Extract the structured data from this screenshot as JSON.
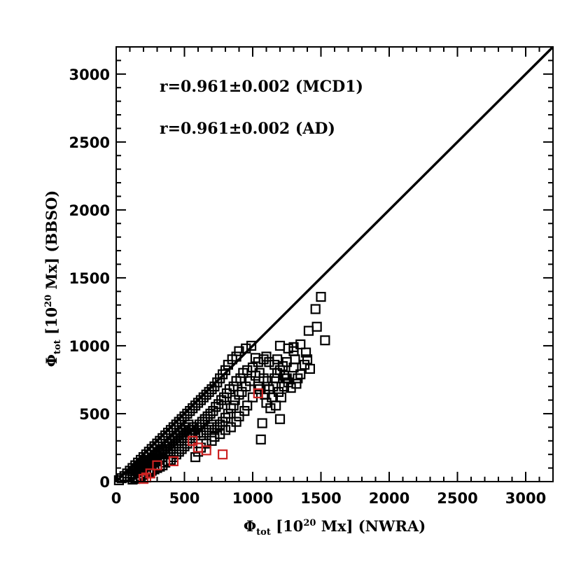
{
  "chart_data": {
    "type": "scatter",
    "title": "",
    "xlabel": {
      "phi": "Φ",
      "sub": "tot",
      "base": " [10",
      "sup": "20",
      "rest": " Mx] (NWRA)"
    },
    "ylabel": {
      "phi": "Φ",
      "sub": "tot",
      "base": " [10",
      "sup": "20",
      "rest": " Mx] (BBSO)"
    },
    "xlim": [
      0,
      3200
    ],
    "ylim": [
      0,
      3200
    ],
    "x_ticks": [
      "0",
      "500",
      "1000",
      "1500",
      "2000",
      "2500",
      "3000"
    ],
    "y_ticks": [
      "0",
      "500",
      "1000",
      "1500",
      "2000",
      "2500",
      "3000"
    ],
    "x_tick_values": [
      0,
      500,
      1000,
      1500,
      2000,
      2500,
      3000
    ],
    "y_tick_values": [
      0,
      500,
      1000,
      1500,
      2000,
      2500,
      3000
    ],
    "annotations": [
      "r=0.961±0.002 (MCD1)",
      "r=0.961±0.002 (AD)"
    ],
    "reference_line": {
      "type": "y=x",
      "color": "#000000"
    },
    "grid": false,
    "marker": "open-square",
    "series": [
      {
        "color": "#000000",
        "points": [
          [
            1500,
            1360
          ],
          [
            1460,
            1270
          ],
          [
            1470,
            1140
          ],
          [
            1410,
            1110
          ],
          [
            1530,
            1040
          ],
          [
            1350,
            1010
          ],
          [
            1300,
            990
          ],
          [
            1300,
            960
          ],
          [
            1200,
            1000
          ],
          [
            1260,
            980
          ],
          [
            1420,
            830
          ],
          [
            1350,
            790
          ],
          [
            1330,
            760
          ],
          [
            1320,
            720
          ],
          [
            1280,
            690
          ],
          [
            1260,
            730
          ],
          [
            1240,
            760
          ],
          [
            1230,
            780
          ],
          [
            1300,
            840
          ],
          [
            1380,
            860
          ],
          [
            1400,
            900
          ],
          [
            1390,
            950
          ],
          [
            1310,
            900
          ],
          [
            1250,
            880
          ],
          [
            1220,
            850
          ],
          [
            1200,
            820
          ],
          [
            1180,
            800
          ],
          [
            1160,
            860
          ],
          [
            1120,
            880
          ],
          [
            1100,
            920
          ],
          [
            1080,
            900
          ],
          [
            1040,
            880
          ],
          [
            1020,
            910
          ],
          [
            990,
            1000
          ],
          [
            950,
            980
          ],
          [
            900,
            960
          ],
          [
            880,
            920
          ],
          [
            850,
            900
          ],
          [
            820,
            860
          ],
          [
            800,
            820
          ],
          [
            780,
            790
          ],
          [
            760,
            760
          ],
          [
            740,
            730
          ],
          [
            720,
            700
          ],
          [
            700,
            680
          ],
          [
            680,
            660
          ],
          [
            660,
            640
          ],
          [
            640,
            620
          ],
          [
            620,
            600
          ],
          [
            600,
            580
          ],
          [
            580,
            560
          ],
          [
            560,
            540
          ],
          [
            540,
            520
          ],
          [
            520,
            500
          ],
          [
            500,
            480
          ],
          [
            480,
            460
          ],
          [
            460,
            440
          ],
          [
            440,
            420
          ],
          [
            420,
            400
          ],
          [
            400,
            380
          ],
          [
            380,
            360
          ],
          [
            360,
            340
          ],
          [
            340,
            320
          ],
          [
            320,
            300
          ],
          [
            300,
            280
          ],
          [
            280,
            260
          ],
          [
            260,
            240
          ],
          [
            240,
            220
          ],
          [
            220,
            200
          ],
          [
            200,
            180
          ],
          [
            180,
            160
          ],
          [
            160,
            140
          ],
          [
            140,
            120
          ],
          [
            120,
            100
          ],
          [
            100,
            80
          ],
          [
            80,
            60
          ],
          [
            60,
            40
          ],
          [
            40,
            25
          ],
          [
            20,
            10
          ],
          [
            1210,
            620
          ],
          [
            1200,
            460
          ],
          [
            1170,
            560
          ],
          [
            1130,
            540
          ],
          [
            1100,
            580
          ],
          [
            1070,
            430
          ],
          [
            1060,
            310
          ],
          [
            1050,
            680
          ],
          [
            1000,
            620
          ],
          [
            960,
            560
          ],
          [
            940,
            520
          ],
          [
            900,
            480
          ],
          [
            880,
            440
          ],
          [
            840,
            400
          ],
          [
            800,
            380
          ],
          [
            760,
            350
          ],
          [
            720,
            330
          ],
          [
            700,
            300
          ],
          [
            660,
            280
          ],
          [
            620,
            250
          ],
          [
            600,
            220
          ],
          [
            580,
            180
          ],
          [
            560,
            320
          ],
          [
            540,
            300
          ],
          [
            520,
            280
          ],
          [
            500,
            260
          ],
          [
            480,
            240
          ],
          [
            460,
            220
          ],
          [
            440,
            200
          ],
          [
            420,
            180
          ],
          [
            400,
            160
          ],
          [
            380,
            150
          ],
          [
            360,
            140
          ],
          [
            340,
            120
          ],
          [
            320,
            110
          ],
          [
            300,
            100
          ],
          [
            280,
            90
          ],
          [
            260,
            80
          ],
          [
            240,
            70
          ],
          [
            220,
            60
          ],
          [
            200,
            50
          ],
          [
            180,
            40
          ],
          [
            160,
            30
          ],
          [
            140,
            20
          ],
          [
            120,
            15
          ],
          [
            1150,
            700
          ],
          [
            1110,
            740
          ],
          [
            1080,
            760
          ],
          [
            1050,
            800
          ],
          [
            1020,
            780
          ],
          [
            980,
            740
          ],
          [
            950,
            700
          ],
          [
            920,
            660
          ],
          [
            900,
            640
          ],
          [
            870,
            600
          ],
          [
            860,
            560
          ],
          [
            840,
            540
          ],
          [
            820,
            500
          ],
          [
            800,
            470
          ],
          [
            780,
            440
          ],
          [
            760,
            420
          ],
          [
            740,
            400
          ],
          [
            720,
            380
          ],
          [
            700,
            420
          ],
          [
            680,
            400
          ],
          [
            660,
            380
          ],
          [
            640,
            360
          ],
          [
            620,
            340
          ],
          [
            600,
            360
          ],
          [
            580,
            340
          ],
          [
            560,
            400
          ],
          [
            540,
            380
          ],
          [
            520,
            360
          ],
          [
            500,
            340
          ],
          [
            480,
            320
          ],
          [
            460,
            300
          ],
          [
            440,
            280
          ],
          [
            420,
            260
          ],
          [
            400,
            240
          ],
          [
            380,
            220
          ],
          [
            360,
            200
          ],
          [
            340,
            180
          ],
          [
            320,
            160
          ],
          [
            300,
            150
          ],
          [
            280,
            140
          ],
          [
            260,
            130
          ],
          [
            240,
            120
          ],
          [
            220,
            110
          ],
          [
            200,
            90
          ],
          [
            180,
            80
          ],
          [
            160,
            70
          ],
          [
            140,
            60
          ],
          [
            120,
            50
          ],
          [
            100,
            40
          ],
          [
            80,
            30
          ],
          [
            960,
            820
          ],
          [
            930,
            800
          ],
          [
            910,
            760
          ],
          [
            880,
            740
          ],
          [
            860,
            700
          ],
          [
            830,
            680
          ],
          [
            810,
            650
          ],
          [
            790,
            620
          ],
          [
            770,
            600
          ],
          [
            750,
            570
          ],
          [
            730,
            550
          ],
          [
            710,
            520
          ],
          [
            690,
            500
          ],
          [
            670,
            480
          ],
          [
            650,
            460
          ],
          [
            630,
            440
          ],
          [
            610,
            420
          ],
          [
            590,
            400
          ],
          [
            570,
            380
          ],
          [
            550,
            360
          ],
          [
            530,
            420
          ],
          [
            510,
            400
          ],
          [
            490,
            380
          ],
          [
            470,
            360
          ],
          [
            450,
            340
          ],
          [
            430,
            320
          ],
          [
            410,
            300
          ],
          [
            390,
            280
          ],
          [
            370,
            260
          ],
          [
            350,
            240
          ],
          [
            330,
            230
          ],
          [
            310,
            210
          ],
          [
            290,
            190
          ],
          [
            270,
            170
          ],
          [
            250,
            160
          ],
          [
            230,
            150
          ],
          [
            210,
            130
          ],
          [
            190,
            110
          ],
          [
            170,
            100
          ],
          [
            150,
            90
          ],
          [
            1000,
            840
          ],
          [
            1040,
            700
          ],
          [
            1090,
            640
          ],
          [
            1140,
            620
          ],
          [
            1190,
            660
          ],
          [
            1230,
            700
          ],
          [
            1250,
            760
          ],
          [
            1180,
            900
          ],
          [
            1160,
            760
          ],
          [
            1120,
            680
          ]
        ]
      },
      {
        "color": "#cc2222",
        "points": [
          [
            780,
            200
          ],
          [
            660,
            230
          ],
          [
            600,
            250
          ],
          [
            560,
            300
          ],
          [
            1040,
            650
          ],
          [
            420,
            150
          ],
          [
            250,
            60
          ],
          [
            220,
            30
          ],
          [
            200,
            20
          ],
          [
            300,
            120
          ]
        ]
      }
    ]
  }
}
